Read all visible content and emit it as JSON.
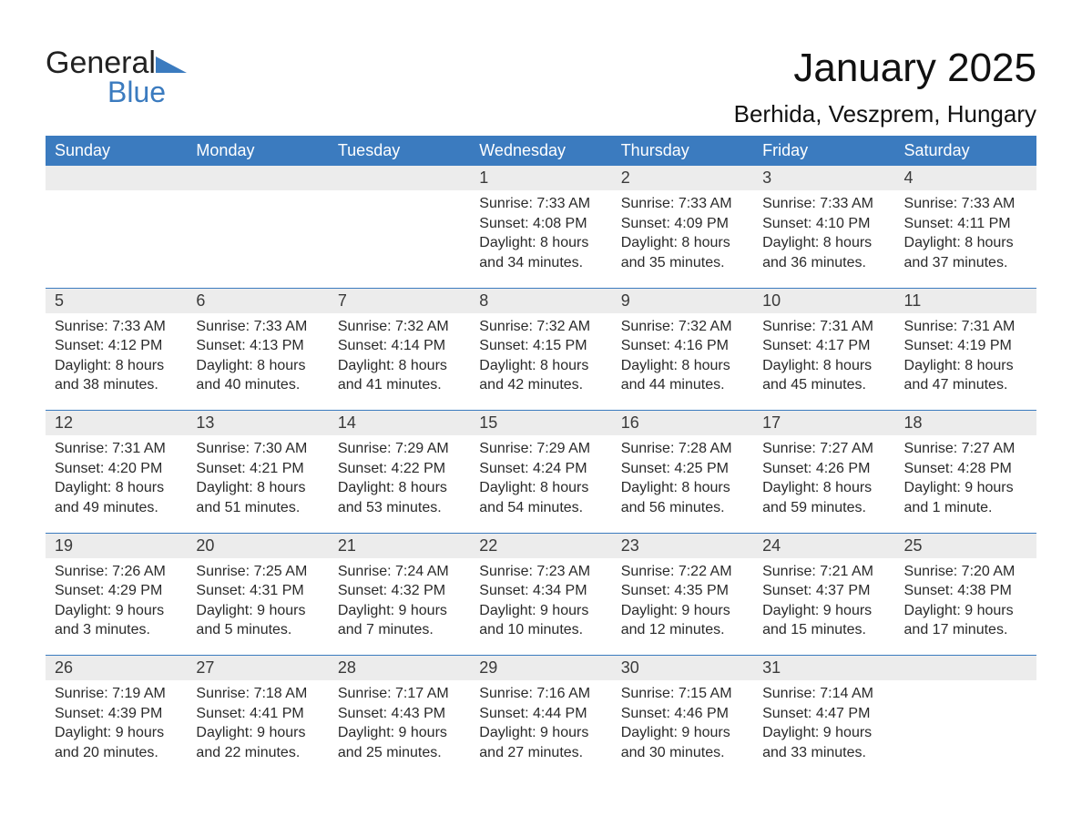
{
  "logo": {
    "word1": "General",
    "word2": "Blue",
    "accent_color": "#3b7bbf",
    "text_color": "#222222"
  },
  "title": "January 2025",
  "location": "Berhida, Veszprem, Hungary",
  "colors": {
    "header_bg": "#3b7bbf",
    "header_text": "#ffffff",
    "daynum_bg": "#ececec",
    "text": "#2a2a2a",
    "page_bg": "#ffffff",
    "separator": "#3b7bbf"
  },
  "typography": {
    "title_fontsize": 44,
    "location_fontsize": 26,
    "header_fontsize": 18,
    "daynum_fontsize": 18,
    "details_fontsize": 16
  },
  "day_headers": [
    "Sunday",
    "Monday",
    "Tuesday",
    "Wednesday",
    "Thursday",
    "Friday",
    "Saturday"
  ],
  "weeks": [
    [
      null,
      null,
      null,
      {
        "num": "1",
        "sunrise": "Sunrise: 7:33 AM",
        "sunset": "Sunset: 4:08 PM",
        "daylight1": "Daylight: 8 hours",
        "daylight2": "and 34 minutes."
      },
      {
        "num": "2",
        "sunrise": "Sunrise: 7:33 AM",
        "sunset": "Sunset: 4:09 PM",
        "daylight1": "Daylight: 8 hours",
        "daylight2": "and 35 minutes."
      },
      {
        "num": "3",
        "sunrise": "Sunrise: 7:33 AM",
        "sunset": "Sunset: 4:10 PM",
        "daylight1": "Daylight: 8 hours",
        "daylight2": "and 36 minutes."
      },
      {
        "num": "4",
        "sunrise": "Sunrise: 7:33 AM",
        "sunset": "Sunset: 4:11 PM",
        "daylight1": "Daylight: 8 hours",
        "daylight2": "and 37 minutes."
      }
    ],
    [
      {
        "num": "5",
        "sunrise": "Sunrise: 7:33 AM",
        "sunset": "Sunset: 4:12 PM",
        "daylight1": "Daylight: 8 hours",
        "daylight2": "and 38 minutes."
      },
      {
        "num": "6",
        "sunrise": "Sunrise: 7:33 AM",
        "sunset": "Sunset: 4:13 PM",
        "daylight1": "Daylight: 8 hours",
        "daylight2": "and 40 minutes."
      },
      {
        "num": "7",
        "sunrise": "Sunrise: 7:32 AM",
        "sunset": "Sunset: 4:14 PM",
        "daylight1": "Daylight: 8 hours",
        "daylight2": "and 41 minutes."
      },
      {
        "num": "8",
        "sunrise": "Sunrise: 7:32 AM",
        "sunset": "Sunset: 4:15 PM",
        "daylight1": "Daylight: 8 hours",
        "daylight2": "and 42 minutes."
      },
      {
        "num": "9",
        "sunrise": "Sunrise: 7:32 AM",
        "sunset": "Sunset: 4:16 PM",
        "daylight1": "Daylight: 8 hours",
        "daylight2": "and 44 minutes."
      },
      {
        "num": "10",
        "sunrise": "Sunrise: 7:31 AM",
        "sunset": "Sunset: 4:17 PM",
        "daylight1": "Daylight: 8 hours",
        "daylight2": "and 45 minutes."
      },
      {
        "num": "11",
        "sunrise": "Sunrise: 7:31 AM",
        "sunset": "Sunset: 4:19 PM",
        "daylight1": "Daylight: 8 hours",
        "daylight2": "and 47 minutes."
      }
    ],
    [
      {
        "num": "12",
        "sunrise": "Sunrise: 7:31 AM",
        "sunset": "Sunset: 4:20 PM",
        "daylight1": "Daylight: 8 hours",
        "daylight2": "and 49 minutes."
      },
      {
        "num": "13",
        "sunrise": "Sunrise: 7:30 AM",
        "sunset": "Sunset: 4:21 PM",
        "daylight1": "Daylight: 8 hours",
        "daylight2": "and 51 minutes."
      },
      {
        "num": "14",
        "sunrise": "Sunrise: 7:29 AM",
        "sunset": "Sunset: 4:22 PM",
        "daylight1": "Daylight: 8 hours",
        "daylight2": "and 53 minutes."
      },
      {
        "num": "15",
        "sunrise": "Sunrise: 7:29 AM",
        "sunset": "Sunset: 4:24 PM",
        "daylight1": "Daylight: 8 hours",
        "daylight2": "and 54 minutes."
      },
      {
        "num": "16",
        "sunrise": "Sunrise: 7:28 AM",
        "sunset": "Sunset: 4:25 PM",
        "daylight1": "Daylight: 8 hours",
        "daylight2": "and 56 minutes."
      },
      {
        "num": "17",
        "sunrise": "Sunrise: 7:27 AM",
        "sunset": "Sunset: 4:26 PM",
        "daylight1": "Daylight: 8 hours",
        "daylight2": "and 59 minutes."
      },
      {
        "num": "18",
        "sunrise": "Sunrise: 7:27 AM",
        "sunset": "Sunset: 4:28 PM",
        "daylight1": "Daylight: 9 hours",
        "daylight2": "and 1 minute."
      }
    ],
    [
      {
        "num": "19",
        "sunrise": "Sunrise: 7:26 AM",
        "sunset": "Sunset: 4:29 PM",
        "daylight1": "Daylight: 9 hours",
        "daylight2": "and 3 minutes."
      },
      {
        "num": "20",
        "sunrise": "Sunrise: 7:25 AM",
        "sunset": "Sunset: 4:31 PM",
        "daylight1": "Daylight: 9 hours",
        "daylight2": "and 5 minutes."
      },
      {
        "num": "21",
        "sunrise": "Sunrise: 7:24 AM",
        "sunset": "Sunset: 4:32 PM",
        "daylight1": "Daylight: 9 hours",
        "daylight2": "and 7 minutes."
      },
      {
        "num": "22",
        "sunrise": "Sunrise: 7:23 AM",
        "sunset": "Sunset: 4:34 PM",
        "daylight1": "Daylight: 9 hours",
        "daylight2": "and 10 minutes."
      },
      {
        "num": "23",
        "sunrise": "Sunrise: 7:22 AM",
        "sunset": "Sunset: 4:35 PM",
        "daylight1": "Daylight: 9 hours",
        "daylight2": "and 12 minutes."
      },
      {
        "num": "24",
        "sunrise": "Sunrise: 7:21 AM",
        "sunset": "Sunset: 4:37 PM",
        "daylight1": "Daylight: 9 hours",
        "daylight2": "and 15 minutes."
      },
      {
        "num": "25",
        "sunrise": "Sunrise: 7:20 AM",
        "sunset": "Sunset: 4:38 PM",
        "daylight1": "Daylight: 9 hours",
        "daylight2": "and 17 minutes."
      }
    ],
    [
      {
        "num": "26",
        "sunrise": "Sunrise: 7:19 AM",
        "sunset": "Sunset: 4:39 PM",
        "daylight1": "Daylight: 9 hours",
        "daylight2": "and 20 minutes."
      },
      {
        "num": "27",
        "sunrise": "Sunrise: 7:18 AM",
        "sunset": "Sunset: 4:41 PM",
        "daylight1": "Daylight: 9 hours",
        "daylight2": "and 22 minutes."
      },
      {
        "num": "28",
        "sunrise": "Sunrise: 7:17 AM",
        "sunset": "Sunset: 4:43 PM",
        "daylight1": "Daylight: 9 hours",
        "daylight2": "and 25 minutes."
      },
      {
        "num": "29",
        "sunrise": "Sunrise: 7:16 AM",
        "sunset": "Sunset: 4:44 PM",
        "daylight1": "Daylight: 9 hours",
        "daylight2": "and 27 minutes."
      },
      {
        "num": "30",
        "sunrise": "Sunrise: 7:15 AM",
        "sunset": "Sunset: 4:46 PM",
        "daylight1": "Daylight: 9 hours",
        "daylight2": "and 30 minutes."
      },
      {
        "num": "31",
        "sunrise": "Sunrise: 7:14 AM",
        "sunset": "Sunset: 4:47 PM",
        "daylight1": "Daylight: 9 hours",
        "daylight2": "and 33 minutes."
      },
      null
    ]
  ]
}
